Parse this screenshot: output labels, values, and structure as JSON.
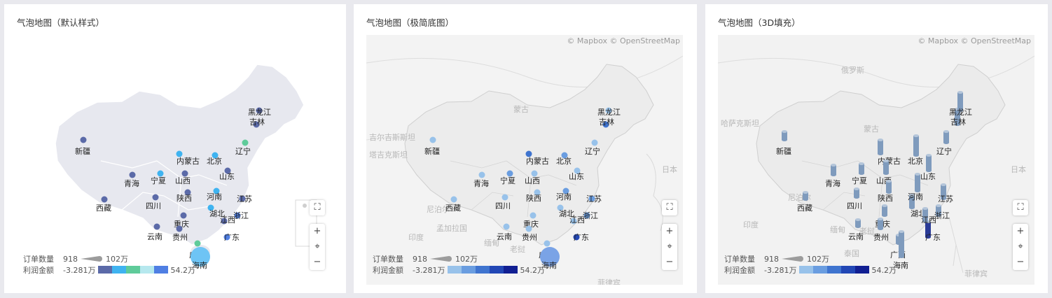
{
  "panels": [
    {
      "title": "气泡地图（默认样式）",
      "attribution": "",
      "country_labels": [],
      "legend": {
        "size_label": "订单数量",
        "size_min": "918",
        "size_max": "102万",
        "color_label": "利润金额",
        "color_min": "-3.281万",
        "color_max": "54.2万",
        "colors": [
          "#5b6aa8",
          "#3fb3f0",
          "#5fcb9a",
          "#b6e8ee",
          "#4f7fe3"
        ]
      }
    },
    {
      "title": "气泡地图（极简底图）",
      "attribution": "© Mapbox © OpenStreetMap",
      "country_labels": [
        "蒙古",
        "吉尔吉斯斯坦",
        "塔吉克斯坦",
        "尼泊尔",
        "孟加拉国",
        "印度",
        "缅甸",
        "老挝",
        "日本",
        "菲律宾"
      ],
      "legend": {
        "size_label": "订单数量",
        "size_min": "918",
        "size_max": "102万",
        "color_label": "利润金额",
        "color_min": "-3.281万",
        "color_max": "54.2万",
        "colors": [
          "#98c2ea",
          "#6a9de0",
          "#3f74cf",
          "#2247b5",
          "#111f92"
        ]
      }
    },
    {
      "title": "气泡地图（3D填充）",
      "attribution": "© Mapbox © OpenStreetMap",
      "country_labels": [
        "俄罗斯",
        "蒙古",
        "哈萨克斯坦",
        "尼泊尔",
        "印度",
        "缅甸",
        "老挝",
        "泰国",
        "日本",
        "菲律宾"
      ],
      "legend": {
        "size_label": "订单数量",
        "size_min": "918",
        "size_max": "102万",
        "color_label": "利润金额",
        "color_min": "-3.281万",
        "color_max": "54.2万",
        "colors": [
          "#98c2ea",
          "#6a9de0",
          "#3f74cf",
          "#2247b5",
          "#111f92"
        ]
      }
    }
  ],
  "province_labels": [
    "新疆",
    "西藏",
    "青海",
    "内蒙古",
    "宁夏",
    "山西",
    "陕西",
    "四川",
    "重庆",
    "云南",
    "贵州",
    "广西",
    "广东",
    "海南",
    "湖北",
    "河南",
    "山东",
    "江苏",
    "浙江",
    "江西",
    "北京",
    "辽宁",
    "吉林",
    "黑龙江"
  ],
  "controls": {
    "fullscreen": "⛶",
    "zoom_in": "+",
    "locate": "⌖",
    "zoom_out": "−"
  }
}
